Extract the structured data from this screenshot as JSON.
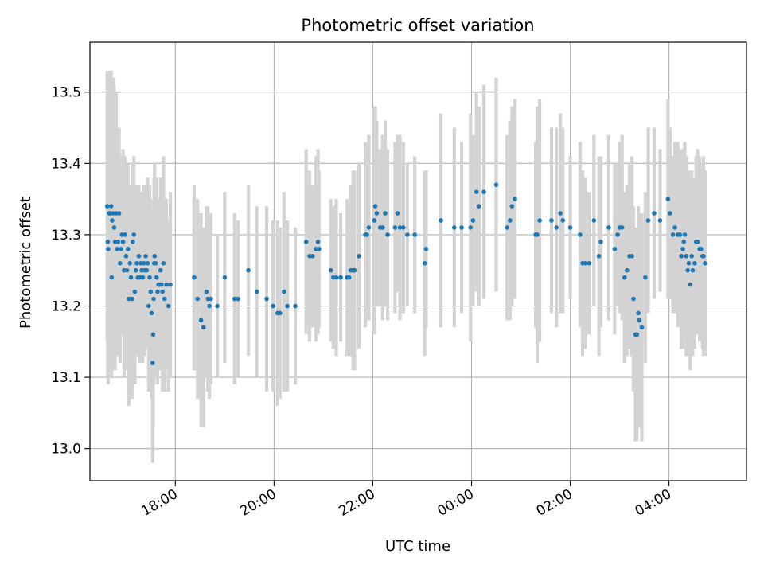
{
  "chart_data": {
    "type": "scatter",
    "title": "Photometric offset variation",
    "xlabel": "UTC time",
    "ylabel": "Photometric offset",
    "x_unit": "hours since 16:00 UTC",
    "xlim": [
      0.27,
      13.57
    ],
    "ylim": [
      12.955,
      13.57
    ],
    "grid": true,
    "x_ticks": [
      {
        "value": 2,
        "label": "18:00"
      },
      {
        "value": 4,
        "label": "20:00"
      },
      {
        "value": 6,
        "label": "22:00"
      },
      {
        "value": 8,
        "label": "00:00"
      },
      {
        "value": 10,
        "label": "02:00"
      },
      {
        "value": 12,
        "label": "04:00"
      }
    ],
    "y_ticks": [
      {
        "value": 13.0,
        "label": "13.0"
      },
      {
        "value": 13.1,
        "label": "13.1"
      },
      {
        "value": 13.2,
        "label": "13.2"
      },
      {
        "value": 13.3,
        "label": "13.3"
      },
      {
        "value": 13.4,
        "label": "13.4"
      },
      {
        "value": 13.5,
        "label": "13.5"
      }
    ],
    "point_color": "#1f77b4",
    "errorbar_color": "#d3d3d3",
    "series": [
      {
        "name": "offset",
        "points": [
          [
            0.62,
            13.34,
            0.19
          ],
          [
            0.63,
            13.29,
            0.19
          ],
          [
            0.64,
            13.28,
            0.19
          ],
          [
            0.66,
            13.33,
            0.19
          ],
          [
            0.67,
            13.33,
            0.2
          ],
          [
            0.68,
            13.33,
            0.2
          ],
          [
            0.7,
            13.34,
            0.19
          ],
          [
            0.71,
            13.24,
            0.14
          ],
          [
            0.72,
            13.32,
            0.19
          ],
          [
            0.74,
            13.33,
            0.19
          ],
          [
            0.76,
            13.31,
            0.2
          ],
          [
            0.78,
            13.29,
            0.18
          ],
          [
            0.8,
            13.33,
            0.17
          ],
          [
            0.82,
            13.28,
            0.15
          ],
          [
            0.84,
            13.29,
            0.13
          ],
          [
            0.86,
            13.33,
            0.12
          ],
          [
            0.88,
            13.26,
            0.14
          ],
          [
            0.9,
            13.28,
            0.12
          ],
          [
            0.92,
            13.3,
            0.11
          ],
          [
            0.94,
            13.29,
            0.13
          ],
          [
            0.96,
            13.25,
            0.15
          ],
          [
            0.98,
            13.3,
            0.11
          ],
          [
            1.0,
            13.27,
            0.13
          ],
          [
            1.02,
            13.25,
            0.14
          ],
          [
            1.04,
            13.28,
            0.12
          ],
          [
            1.06,
            13.21,
            0.15
          ],
          [
            1.08,
            13.26,
            0.11
          ],
          [
            1.1,
            13.24,
            0.12
          ],
          [
            1.12,
            13.21,
            0.14
          ],
          [
            1.14,
            13.29,
            0.11
          ],
          [
            1.16,
            13.3,
            0.11
          ],
          [
            1.18,
            13.22,
            0.13
          ],
          [
            1.2,
            13.25,
            0.12
          ],
          [
            1.22,
            13.26,
            0.1
          ],
          [
            1.24,
            13.24,
            0.11
          ],
          [
            1.26,
            13.27,
            0.1
          ],
          [
            1.28,
            13.24,
            0.12
          ],
          [
            1.3,
            13.26,
            0.1
          ],
          [
            1.32,
            13.25,
            0.11
          ],
          [
            1.34,
            13.24,
            0.12
          ],
          [
            1.36,
            13.26,
            0.11
          ],
          [
            1.38,
            13.25,
            0.12
          ],
          [
            1.4,
            13.27,
            0.1
          ],
          [
            1.42,
            13.25,
            0.11
          ],
          [
            1.44,
            13.26,
            0.12
          ],
          [
            1.46,
            13.2,
            0.12
          ],
          [
            1.48,
            13.24,
            0.13
          ],
          [
            1.5,
            13.22,
            0.13
          ],
          [
            1.52,
            13.19,
            0.12
          ],
          [
            1.54,
            13.12,
            0.14
          ],
          [
            1.55,
            13.16,
            0.13
          ],
          [
            1.56,
            13.21,
            0.12
          ],
          [
            1.57,
            13.26,
            0.12
          ],
          [
            1.58,
            13.27,
            0.13
          ],
          [
            1.6,
            13.26,
            0.12
          ],
          [
            1.62,
            13.24,
            0.14
          ],
          [
            1.64,
            13.22,
            0.13
          ],
          [
            1.66,
            13.23,
            0.11
          ],
          [
            1.68,
            13.23,
            0.12
          ],
          [
            1.7,
            13.25,
            0.13
          ],
          [
            1.72,
            13.23,
            0.12
          ],
          [
            1.74,
            13.22,
            0.14
          ],
          [
            1.76,
            13.26,
            0.15
          ],
          [
            1.78,
            13.21,
            0.13
          ],
          [
            1.82,
            13.23,
            0.12
          ],
          [
            1.86,
            13.2,
            0.12
          ],
          [
            1.9,
            13.23,
            0.13
          ],
          [
            2.38,
            13.24,
            0.13
          ],
          [
            2.45,
            13.21,
            0.14
          ],
          [
            2.52,
            13.18,
            0.15
          ],
          [
            2.57,
            13.17,
            0.14
          ],
          [
            2.63,
            13.22,
            0.12
          ],
          [
            2.66,
            13.21,
            0.13
          ],
          [
            2.69,
            13.2,
            0.13
          ],
          [
            2.72,
            13.21,
            0.12
          ],
          [
            2.85,
            13.2,
            0.1
          ],
          [
            3.0,
            13.24,
            0.12
          ],
          [
            3.2,
            13.21,
            0.12
          ],
          [
            3.27,
            13.21,
            0.11
          ],
          [
            3.48,
            13.25,
            0.12
          ],
          [
            3.65,
            13.22,
            0.12
          ],
          [
            3.85,
            13.21,
            0.13
          ],
          [
            3.98,
            13.2,
            0.12
          ],
          [
            4.07,
            13.19,
            0.13
          ],
          [
            4.12,
            13.19,
            0.12
          ],
          [
            4.2,
            13.22,
            0.14
          ],
          [
            4.27,
            13.2,
            0.12
          ],
          [
            4.43,
            13.2,
            0.11
          ],
          [
            4.65,
            13.29,
            0.13
          ],
          [
            4.72,
            13.27,
            0.12
          ],
          [
            4.78,
            13.27,
            0.1
          ],
          [
            4.85,
            13.28,
            0.13
          ],
          [
            4.89,
            13.29,
            0.13
          ],
          [
            4.91,
            13.28,
            0.11
          ],
          [
            5.15,
            13.25,
            0.1
          ],
          [
            5.2,
            13.24,
            0.1
          ],
          [
            5.26,
            13.24,
            0.11
          ],
          [
            5.35,
            13.24,
            0.09
          ],
          [
            5.48,
            13.24,
            0.11
          ],
          [
            5.52,
            13.24,
            0.1
          ],
          [
            5.55,
            13.25,
            0.12
          ],
          [
            5.6,
            13.25,
            0.14
          ],
          [
            5.63,
            13.25,
            0.14
          ],
          [
            5.72,
            13.27,
            0.13
          ],
          [
            5.85,
            13.3,
            0.13
          ],
          [
            5.88,
            13.3,
            0.11
          ],
          [
            5.92,
            13.31,
            0.13
          ],
          [
            6.03,
            13.32,
            0.16
          ],
          [
            6.05,
            13.34,
            0.14
          ],
          [
            6.08,
            13.33,
            0.13
          ],
          [
            6.15,
            13.31,
            0.11
          ],
          [
            6.2,
            13.31,
            0.13
          ],
          [
            6.25,
            13.33,
            0.13
          ],
          [
            6.3,
            13.3,
            0.12
          ],
          [
            6.45,
            13.31,
            0.12
          ],
          [
            6.5,
            13.33,
            0.11
          ],
          [
            6.55,
            13.31,
            0.13
          ],
          [
            6.62,
            13.31,
            0.12
          ],
          [
            6.7,
            13.3,
            0.1
          ],
          [
            6.85,
            13.3,
            0.11
          ],
          [
            7.05,
            13.26,
            0.13
          ],
          [
            7.08,
            13.28,
            0.11
          ],
          [
            7.38,
            13.32,
            0.15
          ],
          [
            7.65,
            13.31,
            0.14
          ],
          [
            7.8,
            13.31,
            0.12
          ],
          [
            7.98,
            13.31,
            0.16
          ],
          [
            8.03,
            13.32,
            0.12
          ],
          [
            8.1,
            13.36,
            0.14
          ],
          [
            8.15,
            13.34,
            0.14
          ],
          [
            8.25,
            13.36,
            0.15
          ],
          [
            8.5,
            13.37,
            0.15
          ],
          [
            8.72,
            13.31,
            0.13
          ],
          [
            8.78,
            13.32,
            0.14
          ],
          [
            8.82,
            13.34,
            0.14
          ],
          [
            8.88,
            13.35,
            0.14
          ],
          [
            9.3,
            13.3,
            0.13
          ],
          [
            9.33,
            13.3,
            0.18
          ],
          [
            9.38,
            13.32,
            0.17
          ],
          [
            9.62,
            13.32,
            0.13
          ],
          [
            9.72,
            13.31,
            0.14
          ],
          [
            9.8,
            13.33,
            0.14
          ],
          [
            9.85,
            13.32,
            0.13
          ],
          [
            10.0,
            13.31,
            0.1
          ],
          [
            10.2,
            13.3,
            0.13
          ],
          [
            10.25,
            13.26,
            0.13
          ],
          [
            10.3,
            13.26,
            0.12
          ],
          [
            10.38,
            13.26,
            0.1
          ],
          [
            10.48,
            13.32,
            0.12
          ],
          [
            10.58,
            13.27,
            0.14
          ],
          [
            10.62,
            13.29,
            0.12
          ],
          [
            10.78,
            13.31,
            0.13
          ],
          [
            10.9,
            13.28,
            0.12
          ],
          [
            10.96,
            13.3,
            0.1
          ],
          [
            11.0,
            13.31,
            0.12
          ],
          [
            11.05,
            13.31,
            0.13
          ],
          [
            11.1,
            13.24,
            0.12
          ],
          [
            11.15,
            13.25,
            0.12
          ],
          [
            11.2,
            13.27,
            0.13
          ],
          [
            11.25,
            13.27,
            0.14
          ],
          [
            11.28,
            13.21,
            0.13
          ],
          [
            11.32,
            13.16,
            0.15
          ],
          [
            11.35,
            13.16,
            0.15
          ],
          [
            11.38,
            13.19,
            0.15
          ],
          [
            11.4,
            13.18,
            0.15
          ],
          [
            11.45,
            13.17,
            0.16
          ],
          [
            11.52,
            13.24,
            0.12
          ],
          [
            11.58,
            13.32,
            0.13
          ],
          [
            11.7,
            13.33,
            0.12
          ],
          [
            11.82,
            13.32,
            0.1
          ],
          [
            11.98,
            13.35,
            0.14
          ],
          [
            12.02,
            13.33,
            0.12
          ],
          [
            12.08,
            13.3,
            0.11
          ],
          [
            12.12,
            13.31,
            0.12
          ],
          [
            12.18,
            13.3,
            0.13
          ],
          [
            12.22,
            13.3,
            0.12
          ],
          [
            12.25,
            13.27,
            0.13
          ],
          [
            12.28,
            13.28,
            0.14
          ],
          [
            12.3,
            13.29,
            0.13
          ],
          [
            12.32,
            13.3,
            0.13
          ],
          [
            12.35,
            13.27,
            0.14
          ],
          [
            12.38,
            13.25,
            0.12
          ],
          [
            12.4,
            13.26,
            0.13
          ],
          [
            12.43,
            13.23,
            0.12
          ],
          [
            12.46,
            13.27,
            0.12
          ],
          [
            12.48,
            13.25,
            0.12
          ],
          [
            12.52,
            13.26,
            0.12
          ],
          [
            12.55,
            13.29,
            0.12
          ],
          [
            12.58,
            13.29,
            0.13
          ],
          [
            12.62,
            13.28,
            0.13
          ],
          [
            12.65,
            13.28,
            0.12
          ],
          [
            12.68,
            13.27,
            0.13
          ],
          [
            12.7,
            13.27,
            0.14
          ],
          [
            12.73,
            13.26,
            0.13
          ]
        ]
      }
    ]
  }
}
